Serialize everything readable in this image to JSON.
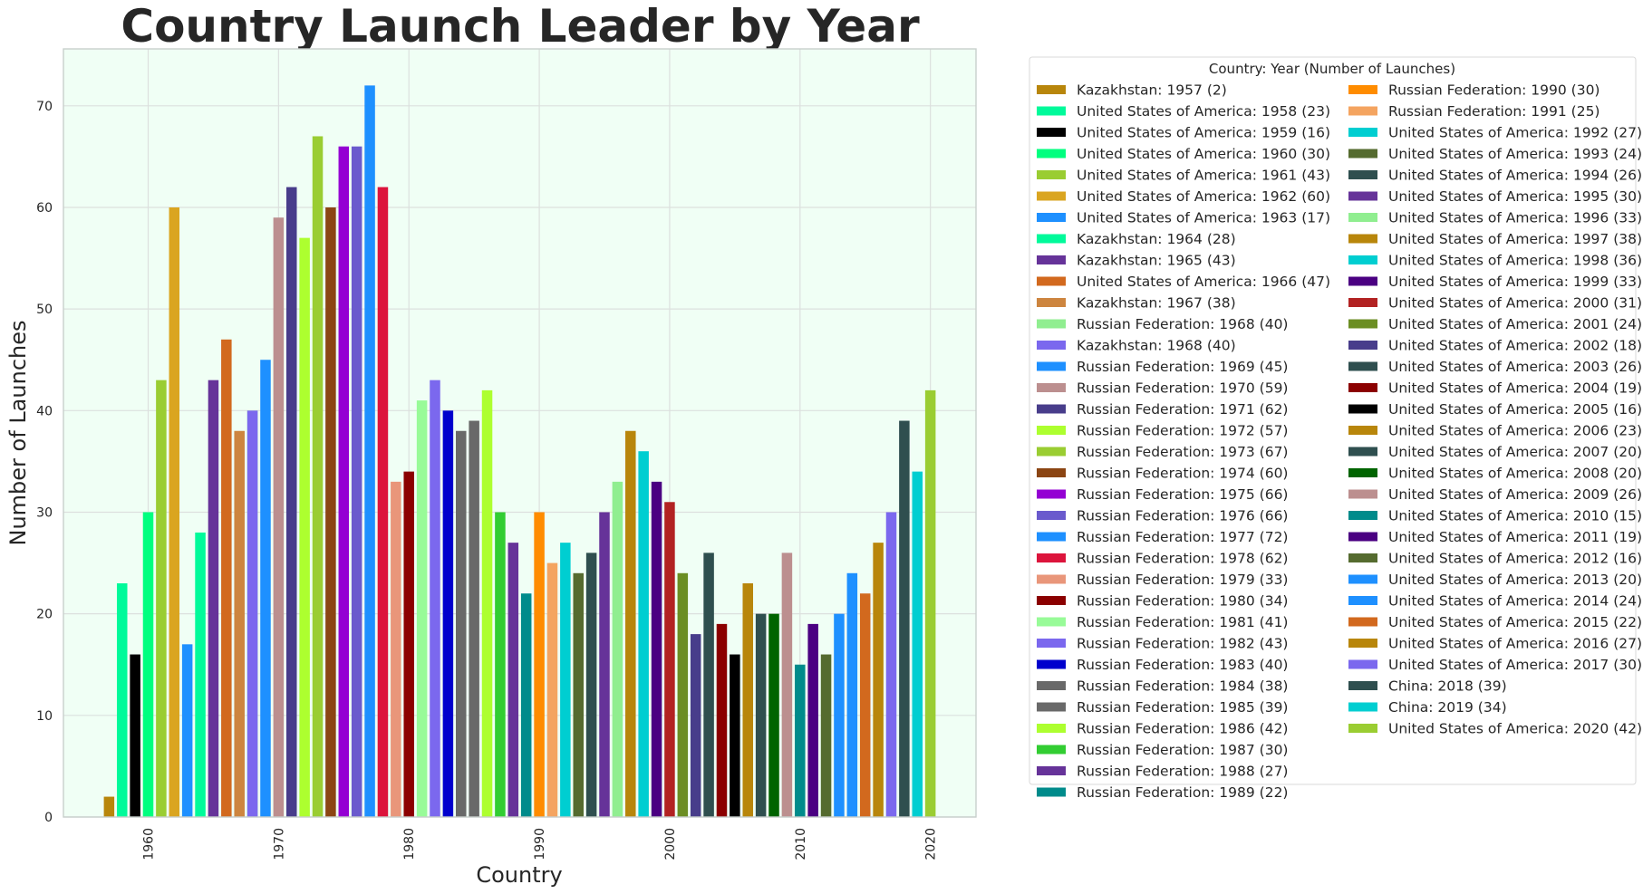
{
  "chart_data": {
    "type": "bar",
    "title": "Country Launch Leader by Year",
    "xlabel": "Country",
    "ylabel": "Number of Launches",
    "xlim": [
      1953.5,
      2023.5
    ],
    "ylim": [
      0,
      75.6
    ],
    "x_ticks": [
      "1960",
      "1970",
      "1980",
      "1990",
      "2000",
      "2010",
      "2020"
    ],
    "y_ticks": [
      "0",
      "10",
      "20",
      "30",
      "40",
      "50",
      "60",
      "70"
    ],
    "grid": true,
    "legend_title": "Country: Year (Number of Launches)",
    "legend_position": "outside right",
    "bars": [
      {
        "year": 1957,
        "value": 2,
        "color": "#B8860B",
        "label": "Kazakhstan: 1957 (2)"
      },
      {
        "year": 1958,
        "value": 23,
        "color": "#00FA9A",
        "label": "United States of America: 1958 (23)"
      },
      {
        "year": 1959,
        "value": 16,
        "color": "#000000",
        "label": "United States of America: 1959 (16)"
      },
      {
        "year": 1960,
        "value": 30,
        "color": "#00FF7F",
        "label": "United States of America: 1960 (30)"
      },
      {
        "year": 1961,
        "value": 43,
        "color": "#9ACD32",
        "label": "United States of America: 1961 (43)"
      },
      {
        "year": 1962,
        "value": 60,
        "color": "#DAA520",
        "label": "United States of America: 1962 (60)"
      },
      {
        "year": 1963,
        "value": 17,
        "color": "#1E90FF",
        "label": "United States of America: 1963 (17)"
      },
      {
        "year": 1964,
        "value": 28,
        "color": "#00FA9A",
        "label": "Kazakhstan: 1964 (28)"
      },
      {
        "year": 1965,
        "value": 43,
        "color": "#663399",
        "label": "Kazakhstan: 1965 (43)"
      },
      {
        "year": 1966,
        "value": 47,
        "color": "#D2691E",
        "label": "United States of America: 1966 (47)"
      },
      {
        "year": 1967,
        "value": 38,
        "color": "#CD853F",
        "label": "Kazakhstan: 1967 (38)"
      },
      {
        "year": 1968,
        "value": 40,
        "color": "#90EE90",
        "label": "Russian Federation: 1968 (40)"
      },
      {
        "year": 1968,
        "value": 40,
        "color": "#7B68EE",
        "label": "Kazakhstan: 1968 (40)"
      },
      {
        "year": 1969,
        "value": 45,
        "color": "#1E90FF",
        "label": "Russian Federation: 1969 (45)"
      },
      {
        "year": 1970,
        "value": 59,
        "color": "#BC8F8F",
        "label": "Russian Federation: 1970 (59)"
      },
      {
        "year": 1971,
        "value": 62,
        "color": "#483D8B",
        "label": "Russian Federation: 1971 (62)"
      },
      {
        "year": 1972,
        "value": 57,
        "color": "#ADFF2F",
        "label": "Russian Federation: 1972 (57)"
      },
      {
        "year": 1973,
        "value": 67,
        "color": "#9ACD32",
        "label": "Russian Federation: 1973 (67)"
      },
      {
        "year": 1974,
        "value": 60,
        "color": "#8B4513",
        "label": "Russian Federation: 1974 (60)"
      },
      {
        "year": 1975,
        "value": 66,
        "color": "#9400D3",
        "label": "Russian Federation: 1975 (66)"
      },
      {
        "year": 1976,
        "value": 66,
        "color": "#6A5ACD",
        "label": "Russian Federation: 1976 (66)"
      },
      {
        "year": 1977,
        "value": 72,
        "color": "#1E90FF",
        "label": "Russian Federation: 1977 (72)"
      },
      {
        "year": 1978,
        "value": 62,
        "color": "#DC143C",
        "label": "Russian Federation: 1978 (62)"
      },
      {
        "year": 1979,
        "value": 33,
        "color": "#E9967A",
        "label": "Russian Federation: 1979 (33)"
      },
      {
        "year": 1980,
        "value": 34,
        "color": "#8B0000",
        "label": "Russian Federation: 1980 (34)"
      },
      {
        "year": 1981,
        "value": 41,
        "color": "#98FB98",
        "label": "Russian Federation: 1981 (41)"
      },
      {
        "year": 1982,
        "value": 43,
        "color": "#7B68EE",
        "label": "Russian Federation: 1982 (43)"
      },
      {
        "year": 1983,
        "value": 40,
        "color": "#0000CD",
        "label": "Russian Federation: 1983 (40)"
      },
      {
        "year": 1984,
        "value": 38,
        "color": "#696969",
        "label": "Russian Federation: 1984 (38)"
      },
      {
        "year": 1985,
        "value": 39,
        "color": "#696969",
        "label": "Russian Federation: 1985 (39)"
      },
      {
        "year": 1986,
        "value": 42,
        "color": "#ADFF2F",
        "label": "Russian Federation: 1986 (42)"
      },
      {
        "year": 1987,
        "value": 30,
        "color": "#32CD32",
        "label": "Russian Federation: 1987 (30)"
      },
      {
        "year": 1988,
        "value": 27,
        "color": "#663399",
        "label": "Russian Federation: 1988 (27)"
      },
      {
        "year": 1989,
        "value": 22,
        "color": "#008B8B",
        "label": "Russian Federation: 1989 (22)"
      },
      {
        "year": 1990,
        "value": 30,
        "color": "#FF8C00",
        "label": "Russian Federation: 1990 (30)"
      },
      {
        "year": 1991,
        "value": 25,
        "color": "#F4A460",
        "label": "Russian Federation: 1991 (25)"
      },
      {
        "year": 1992,
        "value": 27,
        "color": "#00CED1",
        "label": "United States of America: 1992 (27)"
      },
      {
        "year": 1993,
        "value": 24,
        "color": "#556B2F",
        "label": "United States of America: 1993 (24)"
      },
      {
        "year": 1994,
        "value": 26,
        "color": "#2F4F4F",
        "label": "United States of America: 1994 (26)"
      },
      {
        "year": 1995,
        "value": 30,
        "color": "#663399",
        "label": "United States of America: 1995 (30)"
      },
      {
        "year": 1996,
        "value": 33,
        "color": "#90EE90",
        "label": "United States of America: 1996 (33)"
      },
      {
        "year": 1997,
        "value": 38,
        "color": "#B8860B",
        "label": "United States of America: 1997 (38)"
      },
      {
        "year": 1998,
        "value": 36,
        "color": "#00CED1",
        "label": "United States of America: 1998 (36)"
      },
      {
        "year": 1999,
        "value": 33,
        "color": "#4B0082",
        "label": "United States of America: 1999 (33)"
      },
      {
        "year": 2000,
        "value": 31,
        "color": "#B22222",
        "label": "United States of America: 2000 (31)"
      },
      {
        "year": 2001,
        "value": 24,
        "color": "#6B8E23",
        "label": "United States of America: 2001 (24)"
      },
      {
        "year": 2002,
        "value": 18,
        "color": "#483D8B",
        "label": "United States of America: 2002 (18)"
      },
      {
        "year": 2003,
        "value": 26,
        "color": "#2F4F4F",
        "label": "United States of America: 2003 (26)"
      },
      {
        "year": 2004,
        "value": 19,
        "color": "#8B0000",
        "label": "United States of America: 2004 (19)"
      },
      {
        "year": 2005,
        "value": 16,
        "color": "#000000",
        "label": "United States of America: 2005 (16)"
      },
      {
        "year": 2006,
        "value": 23,
        "color": "#B8860B",
        "label": "United States of America: 2006 (23)"
      },
      {
        "year": 2007,
        "value": 20,
        "color": "#2F4F4F",
        "label": "United States of America: 2007 (20)"
      },
      {
        "year": 2008,
        "value": 20,
        "color": "#006400",
        "label": "United States of America: 2008 (20)"
      },
      {
        "year": 2009,
        "value": 26,
        "color": "#BC8F8F",
        "label": "United States of America: 2009 (26)"
      },
      {
        "year": 2010,
        "value": 15,
        "color": "#008B8B",
        "label": "United States of America: 2010 (15)"
      },
      {
        "year": 2011,
        "value": 19,
        "color": "#4B0082",
        "label": "United States of America: 2011 (19)"
      },
      {
        "year": 2012,
        "value": 16,
        "color": "#556B2F",
        "label": "United States of America: 2012 (16)"
      },
      {
        "year": 2013,
        "value": 20,
        "color": "#1E90FF",
        "label": "United States of America: 2013 (20)"
      },
      {
        "year": 2014,
        "value": 24,
        "color": "#1E90FF",
        "label": "United States of America: 2014 (24)"
      },
      {
        "year": 2015,
        "value": 22,
        "color": "#D2691E",
        "label": "United States of America: 2015 (22)"
      },
      {
        "year": 2016,
        "value": 27,
        "color": "#B8860B",
        "label": "United States of America: 2016 (27)"
      },
      {
        "year": 2017,
        "value": 30,
        "color": "#7B68EE",
        "label": "United States of America: 2017 (30)"
      },
      {
        "year": 2018,
        "value": 39,
        "color": "#2F4F4F",
        "label": "China: 2018 (39)"
      },
      {
        "year": 2019,
        "value": 34,
        "color": "#00CED1",
        "label": "China: 2019 (34)"
      },
      {
        "year": 2020,
        "value": 42,
        "color": "#9ACD32",
        "label": "United States of America: 2020 (42)"
      }
    ]
  }
}
